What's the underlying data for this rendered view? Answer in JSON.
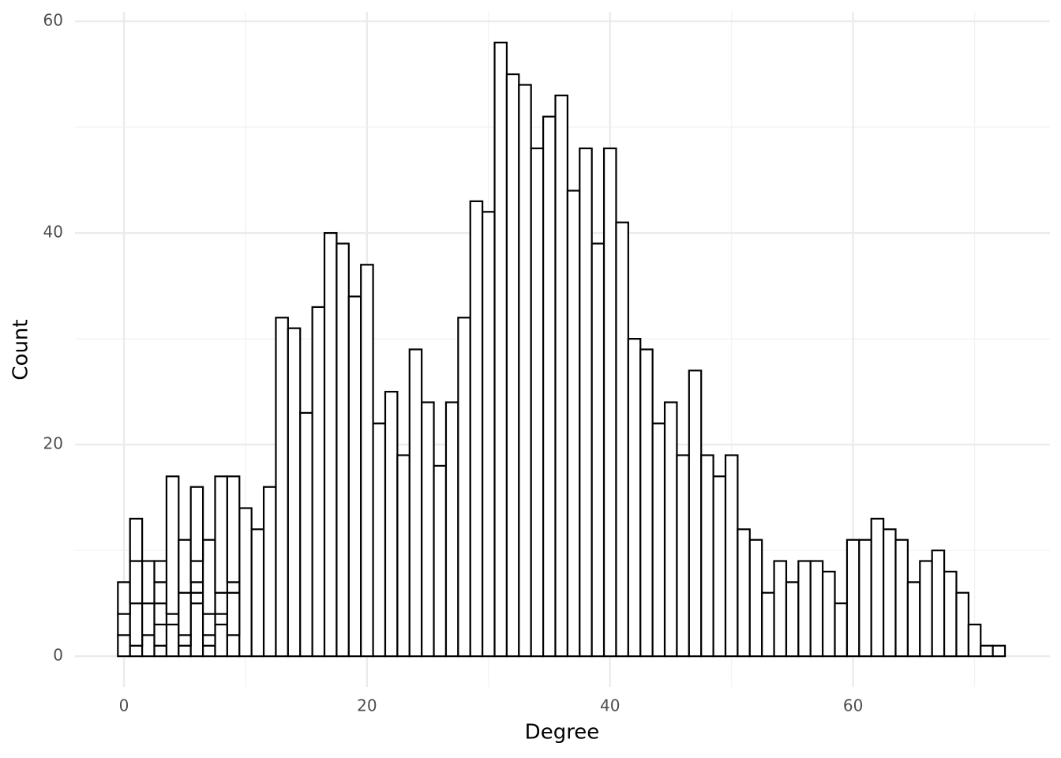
{
  "chart_data": {
    "type": "histogram",
    "x_label": "Degree",
    "y_label": "Count",
    "bins": [
      -0.5,
      0.5,
      1.5,
      2.5,
      3.5,
      4.5,
      5.5,
      6.5,
      7.5,
      8.5,
      9.5,
      10.5,
      11.5,
      12.5,
      13.5,
      14.5,
      15.5,
      16.5,
      17.5,
      18.5,
      19.5,
      20.5,
      21.5,
      22.5,
      23.5,
      24.5,
      25.5,
      26.5,
      27.5,
      28.5,
      29.5,
      30.5,
      31.5,
      32.5,
      33.5,
      34.5,
      35.5,
      36.5,
      37.5,
      38.5,
      39.5,
      40.5,
      41.5,
      42.5,
      43.5,
      44.5,
      45.5,
      46.5,
      47.5,
      48.5,
      49.5,
      50.5,
      51.5,
      52.5,
      53.5,
      54.5,
      55.5,
      56.5,
      57.5,
      58.5,
      59.5,
      60.5,
      61.5,
      62.5,
      63.5,
      64.5,
      65.5,
      66.5,
      67.5,
      68.5,
      69.5,
      70.5,
      71.5,
      72.5
    ],
    "series": [
      {
        "color": "#ffffff",
        "values": [
          2,
          1,
          2,
          1,
          3,
          1,
          5,
          1,
          3,
          2,
          14,
          12,
          16,
          32,
          31,
          23,
          33,
          40,
          39,
          34,
          37,
          22,
          25,
          19,
          29,
          24,
          18,
          24,
          32,
          43,
          42,
          58,
          55,
          54,
          48,
          51,
          53,
          44,
          48,
          39,
          48,
          41,
          30,
          29,
          22,
          24,
          19,
          27,
          19,
          17,
          19,
          12,
          11,
          6,
          9,
          7,
          9,
          9,
          8,
          5,
          11,
          11,
          13,
          12,
          11,
          7,
          9,
          10,
          8,
          6,
          3,
          1,
          1
        ]
      },
      {
        "color": "#ffffff",
        "values": [
          2,
          4,
          3,
          2,
          1,
          1,
          1,
          1,
          1,
          4,
          0,
          0,
          0,
          0,
          0,
          0,
          0,
          0,
          0,
          0,
          0,
          0,
          0,
          0,
          0,
          0,
          0,
          0,
          0,
          0,
          0,
          0,
          0,
          0,
          0,
          0,
          0,
          0,
          0,
          0,
          0,
          0,
          0,
          0,
          0,
          0,
          0,
          0,
          0,
          0,
          0,
          0,
          0,
          0,
          0,
          0,
          0,
          0,
          0,
          0,
          0,
          0,
          0,
          0,
          0,
          0,
          0,
          0,
          0,
          0,
          0,
          0,
          0
        ]
      },
      {
        "color": "#ffffff",
        "values": [
          3,
          4,
          4,
          2,
          13,
          4,
          1,
          2,
          2,
          1,
          0,
          0,
          0,
          0,
          0,
          0,
          0,
          0,
          0,
          0,
          0,
          0,
          0,
          0,
          0,
          0,
          0,
          0,
          0,
          0,
          0,
          0,
          0,
          0,
          0,
          0,
          0,
          0,
          0,
          0,
          0,
          0,
          0,
          0,
          0,
          0,
          0,
          0,
          0,
          0,
          0,
          0,
          0,
          0,
          0,
          0,
          0,
          0,
          0,
          0,
          0,
          0,
          0,
          0,
          0,
          0,
          0,
          0,
          0,
          0,
          0,
          0,
          0
        ]
      },
      {
        "color": "#ffffff",
        "values": [
          0,
          4,
          0,
          2,
          0,
          5,
          2,
          7,
          11,
          10,
          0,
          0,
          0,
          0,
          0,
          0,
          0,
          0,
          0,
          0,
          0,
          0,
          0,
          0,
          0,
          0,
          0,
          0,
          0,
          0,
          0,
          0,
          0,
          0,
          0,
          0,
          0,
          0,
          0,
          0,
          0,
          0,
          0,
          0,
          0,
          0,
          0,
          0,
          0,
          0,
          0,
          0,
          0,
          0,
          0,
          0,
          0,
          0,
          0,
          0,
          0,
          0,
          0,
          0,
          0,
          0,
          0,
          0,
          0,
          0,
          0,
          0,
          0
        ]
      },
      {
        "color": "#ffffff",
        "values": [
          0,
          0,
          0,
          2,
          0,
          0,
          7,
          0,
          0,
          0,
          0,
          0,
          0,
          0,
          0,
          0,
          0,
          0,
          0,
          0,
          0,
          0,
          0,
          0,
          0,
          0,
          0,
          0,
          0,
          0,
          0,
          0,
          0,
          0,
          0,
          0,
          0,
          0,
          0,
          0,
          0,
          0,
          0,
          0,
          0,
          0,
          0,
          0,
          0,
          0,
          0,
          0,
          0,
          0,
          0,
          0,
          0,
          0,
          0,
          0,
          0,
          0,
          0,
          0,
          0,
          0,
          0,
          0,
          0,
          0,
          0,
          0,
          0
        ]
      }
    ],
    "edge_color": "#000000",
    "xlim": [
      -4.03,
      76.2
    ],
    "xticks": [
      0,
      20,
      40,
      60
    ],
    "xminor": [
      10,
      30,
      50,
      70
    ],
    "ylim": [
      -2.9,
      60.9
    ],
    "yticks": [
      0,
      20,
      40,
      60
    ],
    "yminor": [
      10,
      30,
      50
    ],
    "grid": true
  }
}
